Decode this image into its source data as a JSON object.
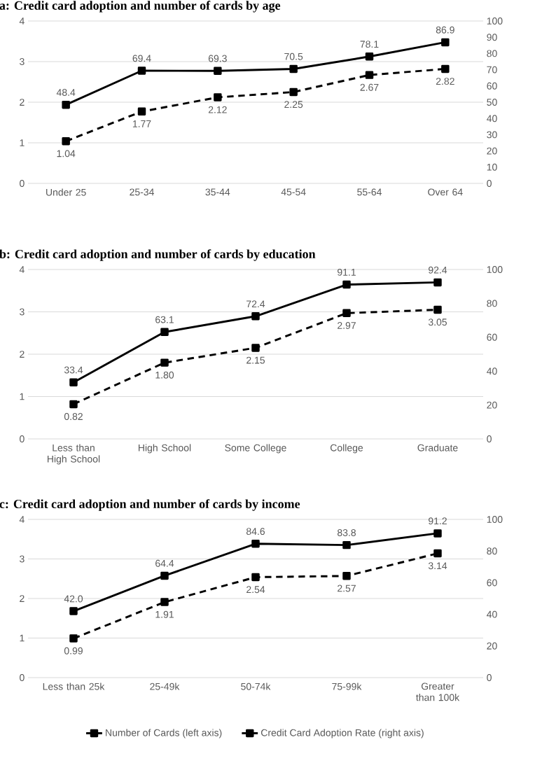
{
  "chart_data": [
    {
      "type": "line",
      "title": "a: Credit card adoption and number of cards by age",
      "categories": [
        "Under 25",
        "25-34",
        "35-44",
        "45-54",
        "55-64",
        "Over 64"
      ],
      "ylim": [
        0,
        4
      ],
      "yticks": [
        0,
        1,
        2,
        3,
        4
      ],
      "y2lim": [
        0,
        100
      ],
      "y2ticks": [
        0,
        10,
        20,
        30,
        40,
        50,
        60,
        70,
        80,
        90,
        100
      ],
      "grid": "y",
      "marker": "square",
      "series": [
        {
          "color": "#000000",
          "line_style": "dashed",
          "values": [
            1.04,
            1.77,
            2.12,
            2.25,
            2.67,
            2.82
          ],
          "value_labels": [
            "1.04",
            "1.77",
            "2.12",
            "2.25",
            "2.67",
            "2.82"
          ]
        },
        {
          "color": "#000000",
          "line_style": "solid",
          "axis": "y2",
          "values": [
            48.4,
            69.4,
            69.3,
            70.5,
            78.1,
            86.9
          ],
          "value_labels": [
            "48.4",
            "69.4",
            "69.3",
            "70.5",
            "78.1",
            "86.9"
          ]
        }
      ]
    },
    {
      "type": "line",
      "title": "b: Credit card adoption and number of cards by education",
      "categories": [
        "Less than High School",
        "High School",
        "Some College",
        "College",
        "Graduate"
      ],
      "ylim": [
        0,
        4
      ],
      "yticks": [
        0,
        1,
        2,
        3,
        4
      ],
      "y2lim": [
        0,
        100
      ],
      "y2ticks": [
        0,
        20,
        40,
        60,
        80,
        100
      ],
      "grid": "y",
      "marker": "square",
      "series": [
        {
          "color": "#000000",
          "line_style": "dashed",
          "values": [
            0.82,
            1.8,
            2.15,
            2.97,
            3.05
          ],
          "value_labels": [
            "0.82",
            "1.80",
            "2.15",
            "2.97",
            "3.05"
          ]
        },
        {
          "color": "#000000",
          "line_style": "solid",
          "axis": "y2",
          "values": [
            33.4,
            63.1,
            72.4,
            91.1,
            92.4
          ],
          "value_labels": [
            "33.4",
            "63.1",
            "72.4",
            "91.1",
            "92.4"
          ]
        }
      ]
    },
    {
      "type": "line",
      "title": "c: Credit card adoption and number of cards by income",
      "categories": [
        "Less than 25k",
        "25-49k",
        "50-74k",
        "75-99k",
        "Greater than 100k"
      ],
      "ylim": [
        0,
        4
      ],
      "yticks": [
        0,
        1,
        2,
        3,
        4
      ],
      "y2lim": [
        0,
        100
      ],
      "y2ticks": [
        0,
        20,
        40,
        60,
        80,
        100
      ],
      "grid": "y",
      "marker": "square",
      "legend": "bottom",
      "series": [
        {
          "name": "Number of Cards (left axis)",
          "color": "#000000",
          "line_style": "dashed",
          "values": [
            0.99,
            1.91,
            2.54,
            2.57,
            3.14
          ],
          "value_labels": [
            "0.99",
            "1.91",
            "2.54",
            "2.57",
            "3.14"
          ]
        },
        {
          "name": "Credit Card Adoption Rate (right axis)",
          "color": "#000000",
          "line_style": "solid",
          "axis": "y2",
          "values": [
            42.0,
            64.4,
            84.6,
            83.8,
            91.2
          ],
          "value_labels": [
            "42.0",
            "64.4",
            "84.6",
            "83.8",
            "91.2"
          ]
        }
      ]
    }
  ]
}
